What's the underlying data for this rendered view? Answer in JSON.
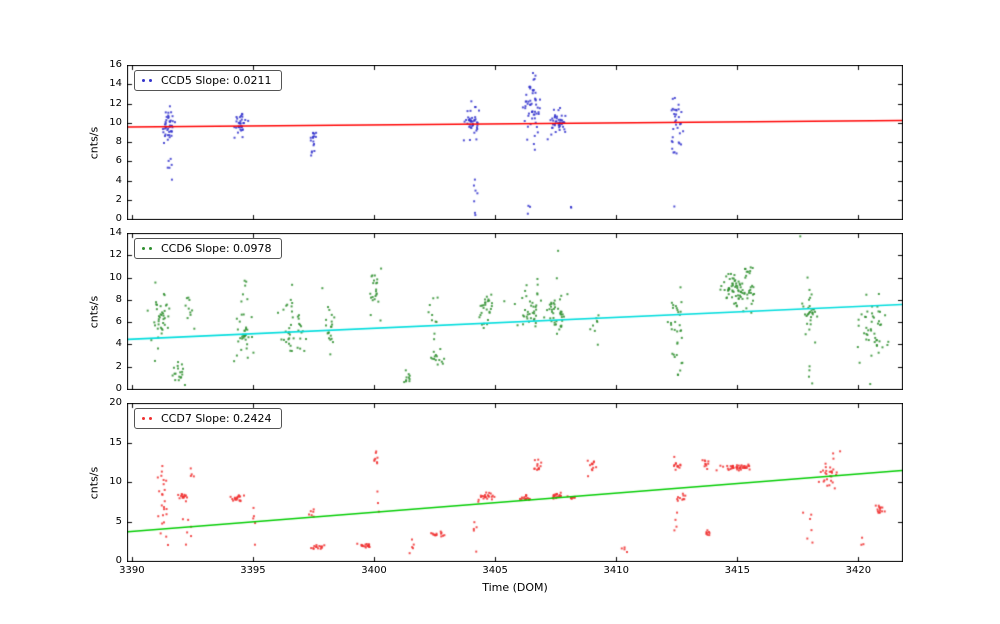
{
  "figure": {
    "background": "#ffffff"
  },
  "chart_data": [
    {
      "type": "scatter",
      "name": "CCD5",
      "legend_label": "CCD5 Slope: 0.0211",
      "slope": 0.0211,
      "ylabel": "cnts/s",
      "xlabel": "",
      "xlim": [
        3389.8,
        3421.8
      ],
      "ylim": [
        0,
        16
      ],
      "yticks": [
        0,
        2,
        4,
        6,
        8,
        10,
        12,
        14,
        16
      ],
      "xticks": [
        3390,
        3395,
        3400,
        3405,
        3410,
        3415,
        3420
      ],
      "show_xtick_labels": false,
      "grid": false,
      "legend_position": "upper-left",
      "point_color": "#3333cc",
      "line_color": "#ff0000",
      "fit_line": {
        "x0": 3389.8,
        "y0": 9.55,
        "x1": 3421.8,
        "y1": 10.23
      },
      "clusters": [
        {
          "x": 3391.5,
          "y": 9.5,
          "n": 42,
          "sx": 0.15,
          "sy": 0.9
        },
        {
          "x": 3391.55,
          "y": 5.9,
          "n": 6,
          "sx": 0.08,
          "sy": 0.8
        },
        {
          "x": 3394.5,
          "y": 10.1,
          "n": 34,
          "sx": 0.13,
          "sy": 0.6
        },
        {
          "x": 3397.5,
          "y": 8.5,
          "n": 13,
          "sx": 0.08,
          "sy": 0.35
        },
        {
          "x": 3397.45,
          "y": 6.9,
          "n": 4,
          "sx": 0.05,
          "sy": 0.25
        },
        {
          "x": 3404.1,
          "y": 9.9,
          "n": 40,
          "sx": 0.15,
          "sy": 0.85
        },
        {
          "x": 3404.15,
          "y": 3.4,
          "n": 7,
          "sx": 0.06,
          "sy": 1.1
        },
        {
          "x": 3406.5,
          "y": 11.6,
          "n": 55,
          "sx": 0.16,
          "sy": 1.4
        },
        {
          "x": 3406.4,
          "y": 1.1,
          "n": 3,
          "sx": 0.04,
          "sy": 0.3
        },
        {
          "x": 3407.6,
          "y": 10.0,
          "n": 46,
          "sx": 0.22,
          "sy": 0.6
        },
        {
          "x": 3408.1,
          "y": 0.9,
          "n": 2,
          "sx": 0.04,
          "sy": 0.25
        },
        {
          "x": 3412.5,
          "y": 9.7,
          "n": 30,
          "sx": 0.12,
          "sy": 1.3
        },
        {
          "x": 3412.45,
          "y": 6.9,
          "n": 3,
          "sx": 0.05,
          "sy": 0.3
        },
        {
          "x": 3412.4,
          "y": 1.3,
          "n": 1,
          "sx": 0,
          "sy": 0
        }
      ]
    },
    {
      "type": "scatter",
      "name": "CCD6",
      "legend_label": "CCD6 Slope: 0.0978",
      "slope": 0.0978,
      "ylabel": "cnts/s",
      "xlabel": "",
      "xlim": [
        3389.8,
        3421.8
      ],
      "ylim": [
        0,
        14
      ],
      "yticks": [
        0,
        2,
        4,
        6,
        8,
        10,
        12,
        14
      ],
      "xticks": [
        3390,
        3395,
        3400,
        3405,
        3410,
        3415,
        3420
      ],
      "show_xtick_labels": false,
      "grid": false,
      "legend_position": "upper-left",
      "point_color": "#2f8f2f",
      "line_color": "#00dddd",
      "fit_line": {
        "x0": 3389.8,
        "y0": 4.45,
        "x1": 3421.8,
        "y1": 7.58
      },
      "clusters": [
        {
          "x": 3391.2,
          "y": 6.3,
          "n": 40,
          "sx": 0.25,
          "sy": 1.5
        },
        {
          "x": 3391.9,
          "y": 1.6,
          "n": 18,
          "sx": 0.12,
          "sy": 0.5
        },
        {
          "x": 3392.4,
          "y": 7.2,
          "n": 10,
          "sx": 0.12,
          "sy": 0.9
        },
        {
          "x": 3394.6,
          "y": 5.0,
          "n": 34,
          "sx": 0.2,
          "sy": 1.2
        },
        {
          "x": 3394.7,
          "y": 9.6,
          "n": 3,
          "sx": 0.06,
          "sy": 0.4
        },
        {
          "x": 3396.6,
          "y": 5.4,
          "n": 40,
          "sx": 0.25,
          "sy": 1.5
        },
        {
          "x": 3398.2,
          "y": 5.6,
          "n": 20,
          "sx": 0.15,
          "sy": 1.1
        },
        {
          "x": 3400.0,
          "y": 8.8,
          "n": 22,
          "sx": 0.1,
          "sy": 1.0
        },
        {
          "x": 3401.4,
          "y": 1.0,
          "n": 10,
          "sx": 0.1,
          "sy": 0.6
        },
        {
          "x": 3402.6,
          "y": 2.7,
          "n": 14,
          "sx": 0.12,
          "sy": 0.4
        },
        {
          "x": 3402.4,
          "y": 6.8,
          "n": 10,
          "sx": 0.15,
          "sy": 1.2
        },
        {
          "x": 3404.6,
          "y": 7.2,
          "n": 28,
          "sx": 0.2,
          "sy": 0.8
        },
        {
          "x": 3406.5,
          "y": 7.4,
          "n": 38,
          "sx": 0.25,
          "sy": 1.0
        },
        {
          "x": 3407.6,
          "y": 7.1,
          "n": 40,
          "sx": 0.2,
          "sy": 0.9
        },
        {
          "x": 3407.6,
          "y": 12.4,
          "n": 1,
          "sx": 0,
          "sy": 0
        },
        {
          "x": 3409.2,
          "y": 6.0,
          "n": 8,
          "sx": 0.1,
          "sy": 0.8
        },
        {
          "x": 3412.5,
          "y": 6.0,
          "n": 28,
          "sx": 0.15,
          "sy": 1.5
        },
        {
          "x": 3412.6,
          "y": 2.0,
          "n": 5,
          "sx": 0.08,
          "sy": 0.5
        },
        {
          "x": 3415.0,
          "y": 9.0,
          "n": 85,
          "sx": 0.35,
          "sy": 0.9
        },
        {
          "x": 3418.0,
          "y": 7.1,
          "n": 30,
          "sx": 0.15,
          "sy": 1.3
        },
        {
          "x": 3418.0,
          "y": 1.2,
          "n": 4,
          "sx": 0.05,
          "sy": 0.7
        },
        {
          "x": 3417.6,
          "y": 13.7,
          "n": 1,
          "sx": 0,
          "sy": 0
        },
        {
          "x": 3420.6,
          "y": 4.9,
          "n": 46,
          "sx": 0.3,
          "sy": 1.8
        }
      ]
    },
    {
      "type": "scatter",
      "name": "CCD7",
      "legend_label": "CCD7 Slope: 0.2424",
      "slope": 0.2424,
      "ylabel": "cnts/s",
      "xlabel": "Time (DOM)",
      "xlim": [
        3389.8,
        3421.8
      ],
      "ylim": [
        0,
        20
      ],
      "yticks": [
        0,
        5,
        10,
        15,
        20
      ],
      "xticks": [
        3390,
        3395,
        3400,
        3405,
        3410,
        3415,
        3420
      ],
      "show_xtick_labels": true,
      "grid": false,
      "legend_position": "upper-left",
      "point_color": "#f03030",
      "line_color": "#00cc00",
      "fit_line": {
        "x0": 3389.8,
        "y0": 3.7,
        "x1": 3421.8,
        "y1": 11.46
      },
      "clusters": [
        {
          "x": 3391.3,
          "y": 7.0,
          "n": 24,
          "sx": 0.12,
          "sy": 2.8
        },
        {
          "x": 3392.1,
          "y": 8.2,
          "n": 15,
          "sx": 0.1,
          "sy": 0.25
        },
        {
          "x": 3392.3,
          "y": 3.6,
          "n": 6,
          "sx": 0.1,
          "sy": 1.2
        },
        {
          "x": 3392.5,
          "y": 11.0,
          "n": 4,
          "sx": 0.08,
          "sy": 0.6
        },
        {
          "x": 3394.4,
          "y": 7.9,
          "n": 18,
          "sx": 0.16,
          "sy": 0.25
        },
        {
          "x": 3395.1,
          "y": 4.0,
          "n": 5,
          "sx": 0.08,
          "sy": 1.5
        },
        {
          "x": 3397.4,
          "y": 6.2,
          "n": 6,
          "sx": 0.1,
          "sy": 0.4
        },
        {
          "x": 3397.6,
          "y": 1.8,
          "n": 14,
          "sx": 0.15,
          "sy": 0.15
        },
        {
          "x": 3399.6,
          "y": 1.9,
          "n": 18,
          "sx": 0.2,
          "sy": 0.15
        },
        {
          "x": 3400.1,
          "y": 13.2,
          "n": 8,
          "sx": 0.06,
          "sy": 0.7
        },
        {
          "x": 3400.2,
          "y": 7.5,
          "n": 3,
          "sx": 0.05,
          "sy": 1.5
        },
        {
          "x": 3401.6,
          "y": 1.7,
          "n": 5,
          "sx": 0.08,
          "sy": 0.8
        },
        {
          "x": 3402.6,
          "y": 3.3,
          "n": 14,
          "sx": 0.15,
          "sy": 0.2
        },
        {
          "x": 3404.2,
          "y": 3.6,
          "n": 5,
          "sx": 0.07,
          "sy": 1.2
        },
        {
          "x": 3404.6,
          "y": 8.3,
          "n": 22,
          "sx": 0.18,
          "sy": 0.3
        },
        {
          "x": 3406.3,
          "y": 8.0,
          "n": 16,
          "sx": 0.12,
          "sy": 0.2
        },
        {
          "x": 3406.8,
          "y": 12.0,
          "n": 12,
          "sx": 0.08,
          "sy": 0.4
        },
        {
          "x": 3407.6,
          "y": 8.2,
          "n": 20,
          "sx": 0.15,
          "sy": 0.2
        },
        {
          "x": 3408.2,
          "y": 8.0,
          "n": 8,
          "sx": 0.08,
          "sy": 0.2
        },
        {
          "x": 3409.0,
          "y": 12.0,
          "n": 12,
          "sx": 0.1,
          "sy": 0.5
        },
        {
          "x": 3410.4,
          "y": 1.5,
          "n": 4,
          "sx": 0.08,
          "sy": 0.4
        },
        {
          "x": 3412.5,
          "y": 12.2,
          "n": 12,
          "sx": 0.1,
          "sy": 0.4
        },
        {
          "x": 3412.7,
          "y": 8.2,
          "n": 10,
          "sx": 0.1,
          "sy": 0.25
        },
        {
          "x": 3412.5,
          "y": 4.6,
          "n": 4,
          "sx": 0.05,
          "sy": 0.5
        },
        {
          "x": 3413.7,
          "y": 12.3,
          "n": 10,
          "sx": 0.1,
          "sy": 0.4
        },
        {
          "x": 3413.8,
          "y": 3.6,
          "n": 8,
          "sx": 0.08,
          "sy": 0.3
        },
        {
          "x": 3415.0,
          "y": 11.8,
          "n": 42,
          "sx": 0.35,
          "sy": 0.2
        },
        {
          "x": 3418.0,
          "y": 3.0,
          "n": 6,
          "sx": 0.1,
          "sy": 1.8
        },
        {
          "x": 3418.7,
          "y": 11.2,
          "n": 26,
          "sx": 0.2,
          "sy": 0.8
        },
        {
          "x": 3419.0,
          "y": 13.2,
          "n": 3,
          "sx": 0.1,
          "sy": 0.4
        },
        {
          "x": 3420.9,
          "y": 6.5,
          "n": 14,
          "sx": 0.12,
          "sy": 0.4
        },
        {
          "x": 3420.2,
          "y": 2.0,
          "n": 3,
          "sx": 0.08,
          "sy": 0.4
        }
      ]
    }
  ]
}
